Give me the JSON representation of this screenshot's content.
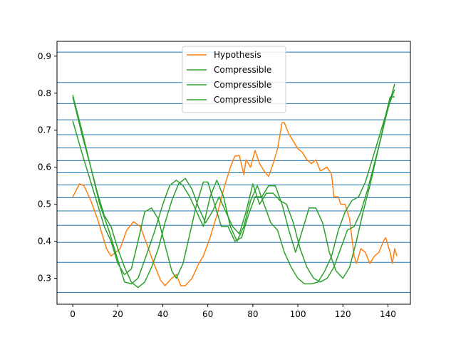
{
  "chart_data": {
    "type": "line",
    "title": "",
    "xlabel": "",
    "ylabel": "",
    "xlim": [
      -7,
      150
    ],
    "ylim": [
      0.23,
      0.94
    ],
    "xticks": [
      0,
      20,
      40,
      60,
      80,
      100,
      120,
      140
    ],
    "yticks": [
      0.3,
      0.4,
      0.5,
      0.6,
      0.7,
      0.8,
      0.9
    ],
    "ytick_labels": [
      "0.3",
      "0.4",
      "0.5",
      "0.6",
      "0.7",
      "0.8",
      "0.9"
    ],
    "grid": false,
    "legend_position": "upper center",
    "horizontal_lines": {
      "color": "#1f77b4",
      "values": [
        0.262,
        0.343,
        0.397,
        0.443,
        0.482,
        0.518,
        0.552,
        0.585,
        0.618,
        0.652,
        0.688,
        0.728,
        0.772,
        0.829,
        0.911
      ]
    },
    "series": [
      {
        "name": "Hypothesis",
        "color": "#ff7f0e",
        "points": [
          [
            0,
            0.52
          ],
          [
            3,
            0.555
          ],
          [
            5,
            0.55
          ],
          [
            8,
            0.51
          ],
          [
            11,
            0.46
          ],
          [
            15,
            0.38
          ],
          [
            17,
            0.36
          ],
          [
            21,
            0.38
          ],
          [
            24,
            0.43
          ],
          [
            27,
            0.453
          ],
          [
            30,
            0.44
          ],
          [
            33,
            0.39
          ],
          [
            36,
            0.34
          ],
          [
            39,
            0.295
          ],
          [
            41,
            0.28
          ],
          [
            44,
            0.3
          ],
          [
            46,
            0.31
          ],
          [
            48,
            0.28
          ],
          [
            50,
            0.28
          ],
          [
            53,
            0.3
          ],
          [
            56,
            0.34
          ],
          [
            58,
            0.36
          ],
          [
            61,
            0.41
          ],
          [
            64,
            0.47
          ],
          [
            67,
            0.54
          ],
          [
            70,
            0.6
          ],
          [
            72,
            0.63
          ],
          [
            74,
            0.632
          ],
          [
            76,
            0.58
          ],
          [
            77,
            0.62
          ],
          [
            79,
            0.6
          ],
          [
            81,
            0.645
          ],
          [
            83,
            0.61
          ],
          [
            85,
            0.59
          ],
          [
            87,
            0.575
          ],
          [
            89,
            0.61
          ],
          [
            91,
            0.65
          ],
          [
            93,
            0.72
          ],
          [
            94,
            0.72
          ],
          [
            96,
            0.69
          ],
          [
            98,
            0.67
          ],
          [
            100,
            0.65
          ],
          [
            102,
            0.64
          ],
          [
            104,
            0.62
          ],
          [
            106,
            0.61
          ],
          [
            108,
            0.62
          ],
          [
            110,
            0.59
          ],
          [
            113,
            0.6
          ],
          [
            115,
            0.58
          ],
          [
            116,
            0.52
          ],
          [
            118,
            0.52
          ],
          [
            119,
            0.5
          ],
          [
            121,
            0.5
          ],
          [
            123,
            0.46
          ],
          [
            125,
            0.36
          ],
          [
            126,
            0.34
          ],
          [
            128,
            0.38
          ],
          [
            130,
            0.37
          ],
          [
            132,
            0.34
          ],
          [
            134,
            0.36
          ],
          [
            136,
            0.37
          ],
          [
            138,
            0.4
          ],
          [
            139,
            0.41
          ],
          [
            141,
            0.37
          ],
          [
            142,
            0.34
          ],
          [
            143,
            0.38
          ],
          [
            144,
            0.36
          ]
        ]
      },
      {
        "name": "Compressible",
        "color": "#2ca02c",
        "points": [
          [
            0,
            0.795
          ],
          [
            4,
            0.7
          ],
          [
            8,
            0.6
          ],
          [
            12,
            0.5
          ],
          [
            16,
            0.43
          ],
          [
            20,
            0.35
          ],
          [
            23,
            0.29
          ],
          [
            26,
            0.285
          ],
          [
            29,
            0.3
          ],
          [
            32,
            0.35
          ],
          [
            36,
            0.42
          ],
          [
            40,
            0.5
          ],
          [
            43,
            0.55
          ],
          [
            46,
            0.565
          ],
          [
            49,
            0.55
          ],
          [
            52,
            0.52
          ],
          [
            55,
            0.48
          ],
          [
            58,
            0.44
          ],
          [
            61,
            0.52
          ],
          [
            64,
            0.565
          ],
          [
            67,
            0.52
          ],
          [
            70,
            0.44
          ],
          [
            73,
            0.4
          ],
          [
            76,
            0.44
          ],
          [
            79,
            0.51
          ],
          [
            82,
            0.55
          ],
          [
            85,
            0.5
          ],
          [
            88,
            0.45
          ],
          [
            91,
            0.43
          ],
          [
            94,
            0.37
          ],
          [
            97,
            0.33
          ],
          [
            100,
            0.3
          ],
          [
            103,
            0.285
          ],
          [
            106,
            0.285
          ],
          [
            109,
            0.29
          ],
          [
            112,
            0.32
          ],
          [
            115,
            0.36
          ],
          [
            118,
            0.43
          ],
          [
            121,
            0.48
          ],
          [
            124,
            0.51
          ],
          [
            127,
            0.52
          ],
          [
            130,
            0.56
          ],
          [
            133,
            0.62
          ],
          [
            136,
            0.68
          ],
          [
            139,
            0.74
          ],
          [
            141,
            0.79
          ],
          [
            143,
            0.79
          ]
        ]
      },
      {
        "name": "Compressible",
        "color": "#2ca02c",
        "points": [
          [
            0,
            0.725
          ],
          [
            4,
            0.64
          ],
          [
            8,
            0.56
          ],
          [
            11,
            0.5
          ],
          [
            14,
            0.44
          ],
          [
            17,
            0.4
          ],
          [
            20,
            0.34
          ],
          [
            23,
            0.31
          ],
          [
            26,
            0.325
          ],
          [
            29,
            0.4
          ],
          [
            32,
            0.48
          ],
          [
            35,
            0.49
          ],
          [
            38,
            0.46
          ],
          [
            41,
            0.39
          ],
          [
            44,
            0.32
          ],
          [
            46,
            0.3
          ],
          [
            49,
            0.34
          ],
          [
            52,
            0.42
          ],
          [
            55,
            0.5
          ],
          [
            58,
            0.56
          ],
          [
            60,
            0.56
          ],
          [
            63,
            0.5
          ],
          [
            66,
            0.44
          ],
          [
            69,
            0.44
          ],
          [
            72,
            0.4
          ],
          [
            75,
            0.41
          ],
          [
            78,
            0.47
          ],
          [
            81,
            0.52
          ],
          [
            84,
            0.52
          ],
          [
            87,
            0.55
          ],
          [
            90,
            0.55
          ],
          [
            93,
            0.5
          ],
          [
            96,
            0.43
          ],
          [
            99,
            0.37
          ],
          [
            102,
            0.43
          ],
          [
            105,
            0.49
          ],
          [
            108,
            0.49
          ],
          [
            111,
            0.45
          ],
          [
            114,
            0.37
          ],
          [
            117,
            0.32
          ],
          [
            120,
            0.3
          ],
          [
            123,
            0.33
          ],
          [
            126,
            0.4
          ],
          [
            129,
            0.48
          ],
          [
            132,
            0.55
          ],
          [
            135,
            0.63
          ],
          [
            138,
            0.71
          ],
          [
            141,
            0.78
          ],
          [
            143,
            0.825
          ]
        ]
      },
      {
        "name": "Compressible",
        "color": "#2ca02c",
        "points": [
          [
            0,
            0.79
          ],
          [
            4,
            0.69
          ],
          [
            8,
            0.6
          ],
          [
            11,
            0.53
          ],
          [
            14,
            0.47
          ],
          [
            17,
            0.44
          ],
          [
            20,
            0.38
          ],
          [
            23,
            0.33
          ],
          [
            26,
            0.29
          ],
          [
            29,
            0.275
          ],
          [
            32,
            0.29
          ],
          [
            35,
            0.33
          ],
          [
            38,
            0.38
          ],
          [
            41,
            0.45
          ],
          [
            44,
            0.51
          ],
          [
            47,
            0.555
          ],
          [
            50,
            0.57
          ],
          [
            53,
            0.54
          ],
          [
            56,
            0.49
          ],
          [
            59,
            0.45
          ],
          [
            62,
            0.48
          ],
          [
            65,
            0.52
          ],
          [
            68,
            0.48
          ],
          [
            71,
            0.44
          ],
          [
            74,
            0.42
          ],
          [
            77,
            0.48
          ],
          [
            80,
            0.555
          ],
          [
            83,
            0.5
          ],
          [
            86,
            0.53
          ],
          [
            89,
            0.53
          ],
          [
            92,
            0.51
          ],
          [
            95,
            0.5
          ],
          [
            98,
            0.45
          ],
          [
            101,
            0.38
          ],
          [
            104,
            0.33
          ],
          [
            107,
            0.3
          ],
          [
            110,
            0.29
          ],
          [
            113,
            0.3
          ],
          [
            116,
            0.33
          ],
          [
            119,
            0.38
          ],
          [
            122,
            0.43
          ],
          [
            125,
            0.44
          ],
          [
            128,
            0.48
          ],
          [
            131,
            0.54
          ],
          [
            134,
            0.61
          ],
          [
            137,
            0.68
          ],
          [
            140,
            0.76
          ],
          [
            143,
            0.81
          ]
        ]
      }
    ]
  }
}
